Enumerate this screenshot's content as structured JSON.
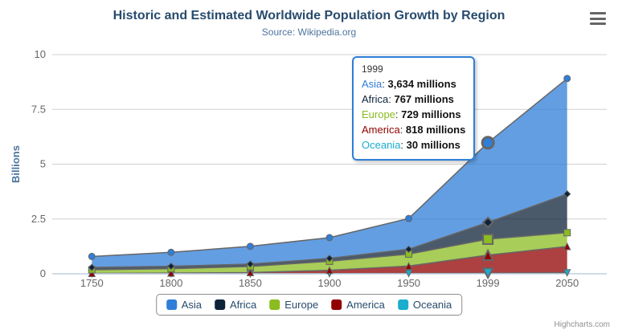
{
  "header": {
    "title": "Historic and Estimated Worldwide Population Growth by Region",
    "subtitle": "Source: Wikipedia.org"
  },
  "icons": {
    "export_menu": "hamburger-menu"
  },
  "chart_data": {
    "type": "area",
    "stacking": "normal",
    "title": "Historic and Estimated Worldwide Population Growth by Region",
    "subtitle": "Source: Wikipedia.org",
    "categories": [
      "1750",
      "1800",
      "1850",
      "1900",
      "1950",
      "1999",
      "2050"
    ],
    "series": [
      {
        "name": "Asia",
        "color": "#2f7ed8",
        "marker": "circle",
        "values": [
          502,
          635,
          809,
          947,
          1402,
          3634,
          5268
        ]
      },
      {
        "name": "Africa",
        "color": "#0d233a",
        "marker": "diamond",
        "values": [
          106,
          107,
          111,
          133,
          221,
          767,
          1766
        ]
      },
      {
        "name": "Europe",
        "color": "#8bbc21",
        "marker": "square",
        "values": [
          163,
          203,
          276,
          408,
          547,
          729,
          628
        ]
      },
      {
        "name": "America",
        "color": "#910000",
        "marker": "triangle",
        "values": [
          18,
          31,
          54,
          156,
          339,
          818,
          1201
        ]
      },
      {
        "name": "Oceania",
        "color": "#1aadce",
        "marker": "triangle-down",
        "values": [
          2,
          2,
          2,
          6,
          13,
          30,
          46
        ]
      }
    ],
    "values_unit": "millions",
    "xlabel": "",
    "ylabel": "Billions",
    "ylim": [
      0,
      10
    ],
    "yticks": [
      "0",
      "2.5",
      "5",
      "7.5",
      "10"
    ],
    "grid": true,
    "legend_position": "bottom",
    "hover_category_index": 5,
    "fill_opacity": 0.75,
    "line_color": "#666666"
  },
  "tooltip": {
    "header": "1999",
    "rows": [
      {
        "name": "Asia",
        "color": "#2f7ed8",
        "value": "3,634 millions"
      },
      {
        "name": "Africa",
        "color": "#0d233a",
        "value": "767 millions"
      },
      {
        "name": "Europe",
        "color": "#8bbc21",
        "value": "729 millions"
      },
      {
        "name": "America",
        "color": "#910000",
        "value": "818 millions"
      },
      {
        "name": "Oceania",
        "color": "#1aadce",
        "value": "30 millions"
      }
    ]
  },
  "legend": {
    "items": [
      {
        "label": "Asia",
        "color": "#2f7ed8"
      },
      {
        "label": "Africa",
        "color": "#0d233a"
      },
      {
        "label": "Europe",
        "color": "#8bbc21"
      },
      {
        "label": "America",
        "color": "#910000"
      },
      {
        "label": "Oceania",
        "color": "#1aadce"
      }
    ]
  },
  "credits": {
    "label": "Highcharts.com"
  },
  "colors": {
    "title": "#274b6d",
    "subtitle": "#4d759e",
    "axis_label": "#666666",
    "axis_title": "#4d759e",
    "grid_line": "#d0d0d0",
    "axis_line": "#c0d0e0",
    "legend_text": "#274b6d",
    "tooltip_border": "#2f7ed8"
  }
}
